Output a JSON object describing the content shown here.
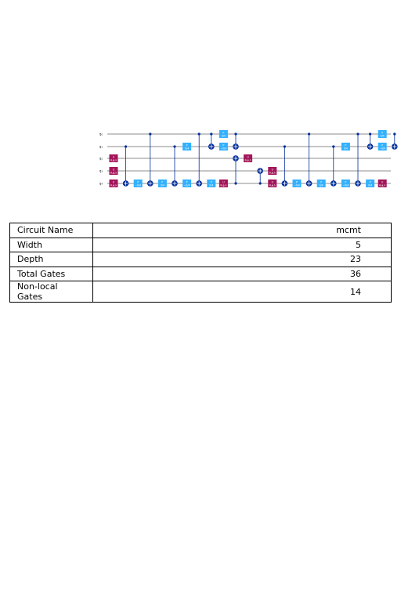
{
  "circuit": {
    "qubit_labels": [
      "q₀",
      "q₁",
      "q₂",
      "q₃",
      "q₄"
    ],
    "colors": {
      "u_gate": "#a3155a",
      "p_gate": "#33b1ff",
      "control": "#002d9c",
      "wire": "#1a1a1a"
    },
    "gates": [
      {
        "type": "u",
        "q": 2,
        "col": 0,
        "label": "U",
        "sub": "θ,φ,λ"
      },
      {
        "type": "u",
        "q": 3,
        "col": 0,
        "label": "U",
        "sub": "θ,φ,λ"
      },
      {
        "type": "u",
        "q": 4,
        "col": 0,
        "label": "U",
        "sub": "θ,φ,λ"
      },
      {
        "type": "cx",
        "c": 1,
        "t": 4,
        "col": 1
      },
      {
        "type": "p",
        "q": 4,
        "col": 2,
        "label": "P",
        "sub": "−π/4"
      },
      {
        "type": "cx",
        "c": 0,
        "t": 4,
        "col": 3
      },
      {
        "type": "p",
        "q": 4,
        "col": 4,
        "label": "P",
        "sub": "π/4"
      },
      {
        "type": "cx",
        "c": 1,
        "t": 4,
        "col": 5
      },
      {
        "type": "p",
        "q": 1,
        "col": 6,
        "label": "P",
        "sub": "π/4"
      },
      {
        "type": "p",
        "q": 4,
        "col": 6,
        "label": "P",
        "sub": "−π/4"
      },
      {
        "type": "cx",
        "c": 0,
        "t": 4,
        "col": 7
      },
      {
        "type": "cx",
        "c": 0,
        "t": 1,
        "col": 8
      },
      {
        "type": "p",
        "q": 4,
        "col": 8,
        "label": "P",
        "sub": "π/4"
      },
      {
        "type": "p",
        "q": 0,
        "col": 9,
        "label": "P",
        "sub": "π/4"
      },
      {
        "type": "p",
        "q": 1,
        "col": 9,
        "label": "P",
        "sub": "−π/4"
      },
      {
        "type": "u",
        "q": 4,
        "col": 9,
        "label": "U",
        "sub": "θ,φ,λ"
      },
      {
        "type": "cx",
        "c": 0,
        "t": 1,
        "col": 10
      },
      {
        "type": "cx",
        "c": 4,
        "t": 2,
        "col": 10
      },
      {
        "type": "u",
        "q": 2,
        "col": 11,
        "label": "U",
        "sub": "θ,φ,λ"
      },
      {
        "type": "cx",
        "c": 4,
        "t": 3,
        "col": 12
      },
      {
        "type": "u",
        "q": 3,
        "col": 13,
        "label": "U",
        "sub": "θ,φ,λ"
      },
      {
        "type": "u",
        "q": 4,
        "col": 13,
        "label": "U",
        "sub": "θ,φ,λ"
      },
      {
        "type": "cx",
        "c": 1,
        "t": 4,
        "col": 14
      },
      {
        "type": "p",
        "q": 4,
        "col": 15,
        "label": "P",
        "sub": "−π/4"
      },
      {
        "type": "cx",
        "c": 0,
        "t": 4,
        "col": 16
      },
      {
        "type": "p",
        "q": 4,
        "col": 17,
        "label": "P",
        "sub": "π/4"
      },
      {
        "type": "cx",
        "c": 1,
        "t": 4,
        "col": 18
      },
      {
        "type": "p",
        "q": 1,
        "col": 19,
        "label": "P",
        "sub": "π/4"
      },
      {
        "type": "p",
        "q": 4,
        "col": 19,
        "label": "P",
        "sub": "−π/4"
      },
      {
        "type": "cx",
        "c": 0,
        "t": 4,
        "col": 20
      },
      {
        "type": "cx",
        "c": 0,
        "t": 1,
        "col": 21
      },
      {
        "type": "p",
        "q": 4,
        "col": 21,
        "label": "P",
        "sub": "π/4"
      },
      {
        "type": "p",
        "q": 0,
        "col": 22,
        "label": "P",
        "sub": "π/4"
      },
      {
        "type": "p",
        "q": 1,
        "col": 22,
        "label": "P",
        "sub": "−π/4"
      },
      {
        "type": "u",
        "q": 4,
        "col": 22,
        "label": "U",
        "sub": "θ,φ,λ"
      },
      {
        "type": "cx",
        "c": 0,
        "t": 1,
        "col": 23
      }
    ]
  },
  "stats_table": [
    {
      "key": "Circuit Name",
      "value": "mcmt"
    },
    {
      "key": "Width",
      "value": "5"
    },
    {
      "key": "Depth",
      "value": "23"
    },
    {
      "key": "Total Gates",
      "value": "36"
    },
    {
      "key": "Non-local Gates",
      "value": "14"
    }
  ]
}
